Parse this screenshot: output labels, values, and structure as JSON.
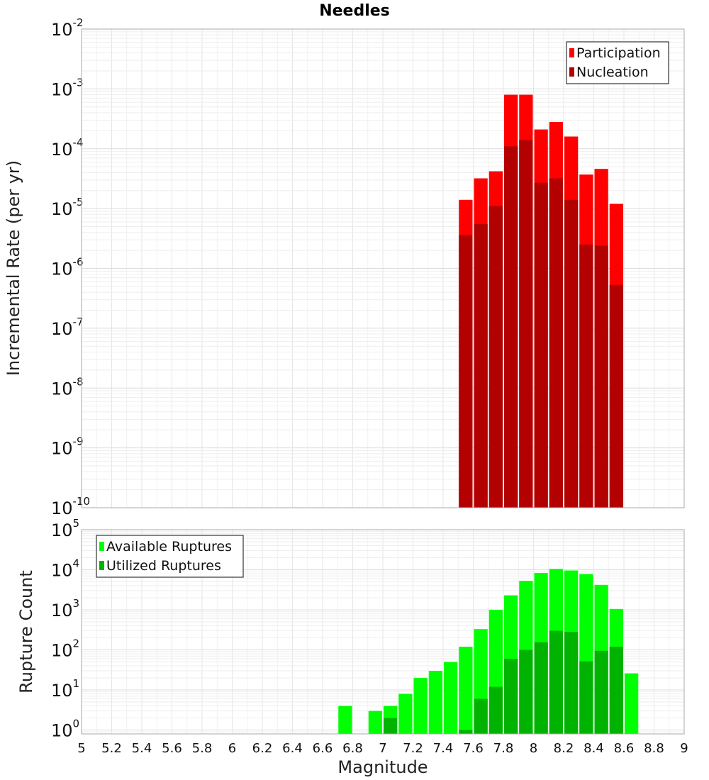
{
  "chart_data": [
    {
      "type": "bar",
      "title": "Needles",
      "xlabel": "",
      "ylabel": "Incremental Rate (per yr)",
      "yscale": "log",
      "xlim": [
        5,
        9
      ],
      "ylim": [
        1e-10,
        0.01
      ],
      "y_tick_labels": [
        "10^-10",
        "10^-9",
        "10^-8",
        "10^-7",
        "10^-6",
        "10^-5",
        "10^-4",
        "10^-3",
        "10^-2"
      ],
      "grid": true,
      "legend_position": "top-right",
      "bin_width": 0.1,
      "bin_centers": [
        7.55,
        7.65,
        7.75,
        7.85,
        7.95,
        8.05,
        8.15,
        8.25,
        8.35,
        8.45,
        8.55
      ],
      "series": [
        {
          "name": "Participation",
          "color": "#ff0000",
          "values": [
            1.4e-05,
            3.2e-05,
            4.2e-05,
            0.0008,
            0.0008,
            0.00021,
            0.00028,
            0.00016,
            3.7e-05,
            4.6e-05,
            1.2e-05
          ]
        },
        {
          "name": "Nucleation",
          "color": "#b30000",
          "values": [
            3.6e-06,
            5.5e-06,
            1.1e-05,
            0.00011,
            0.00014,
            2.7e-05,
            3.2e-05,
            1.4e-05,
            2.5e-06,
            2.4e-06,
            5.3e-07
          ]
        }
      ]
    },
    {
      "type": "bar",
      "title": "",
      "xlabel": "Magnitude",
      "ylabel": "Rupture Count",
      "yscale": "log",
      "xlim": [
        5,
        9
      ],
      "ylim": [
        0.8,
        100000.0
      ],
      "x_tick_labels": [
        "5",
        "5.2",
        "5.4",
        "5.6",
        "5.8",
        "6",
        "6.2",
        "6.4",
        "6.6",
        "6.8",
        "7",
        "7.2",
        "7.4",
        "7.6",
        "7.8",
        "8",
        "8.2",
        "8.4",
        "8.6",
        "8.8",
        "9"
      ],
      "y_tick_labels": [
        "10^0",
        "10^1",
        "10^2",
        "10^3",
        "10^4",
        "10^5"
      ],
      "grid": true,
      "legend_position": "top-left",
      "bin_width": 0.1,
      "bin_centers": [
        6.75,
        6.95,
        7.05,
        7.15,
        7.25,
        7.35,
        7.45,
        7.55,
        7.65,
        7.75,
        7.85,
        7.95,
        8.05,
        8.15,
        8.25,
        8.35,
        8.45,
        8.55,
        8.65
      ],
      "series": [
        {
          "name": "Available Ruptures",
          "color": "#00ff00",
          "values": [
            4,
            3,
            4,
            8,
            20,
            30,
            50,
            120,
            330,
            1000,
            2300,
            5300,
            8300,
            10500,
            9600,
            7800,
            4200,
            1050,
            26
          ]
        },
        {
          "name": "Utilized Ruptures",
          "color": "#00b300",
          "values": [
            0,
            0,
            2,
            0,
            0,
            0,
            0,
            1,
            6,
            12,
            60,
            100,
            155,
            300,
            280,
            52,
            95,
            120,
            0
          ]
        }
      ]
    }
  ]
}
